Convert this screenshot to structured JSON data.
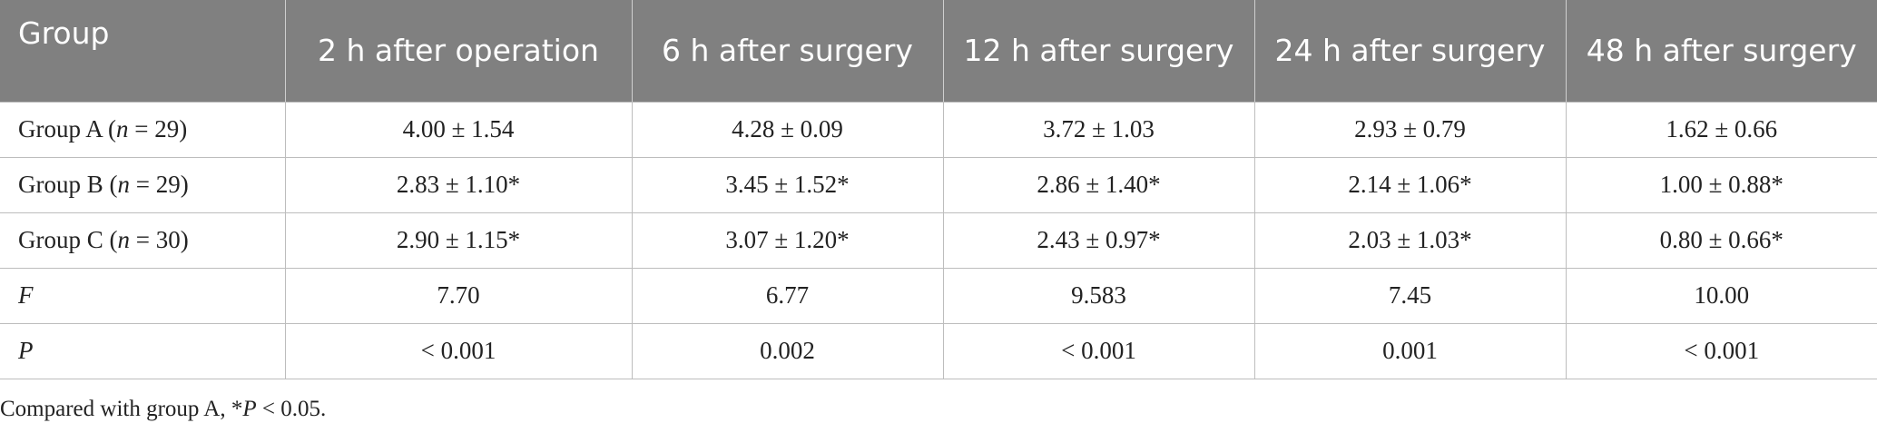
{
  "table": {
    "headers": [
      "Group",
      "2 h after operation",
      "6 h after surgery",
      "12 h after surgery",
      "24 h after surgery",
      "48 h after surgery"
    ],
    "rows": [
      {
        "label_prefix": "Group A (",
        "label_var": "n",
        "label_suffix": " = 29)",
        "values": [
          "4.00 ± 1.54",
          "4.28 ± 0.09",
          "3.72 ± 1.03",
          "2.93 ± 0.79",
          "1.62 ± 0.66"
        ]
      },
      {
        "label_prefix": "Group B (",
        "label_var": "n",
        "label_suffix": " = 29)",
        "values": [
          "2.83 ± 1.10*",
          "3.45 ± 1.52*",
          "2.86 ± 1.40*",
          "2.14 ± 1.06*",
          "1.00 ± 0.88*"
        ]
      },
      {
        "label_prefix": "Group C (",
        "label_var": "n",
        "label_suffix": " = 30)",
        "values": [
          "2.90 ± 1.15*",
          "3.07 ± 1.20*",
          "2.43 ± 0.97*",
          "2.03 ± 1.03*",
          "0.80 ± 0.66*"
        ]
      },
      {
        "label_prefix": "",
        "label_var": "F",
        "label_suffix": "",
        "values": [
          "7.70",
          "6.77",
          "9.583",
          "7.45",
          "10.00"
        ]
      },
      {
        "label_prefix": "",
        "label_var": "P",
        "label_suffix": "",
        "values": [
          "< 0.001",
          "0.002",
          "< 0.001",
          "0.001",
          "< 0.001"
        ]
      }
    ]
  },
  "footnote": {
    "prefix": "Compared with group A, *",
    "var": "P",
    "suffix": " < 0.05."
  }
}
